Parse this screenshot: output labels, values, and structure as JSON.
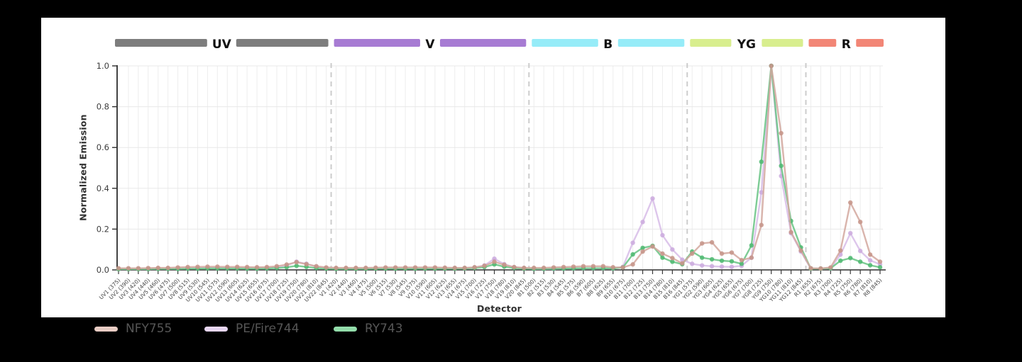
{
  "page": {
    "background": "#000000",
    "panel_background": "#ffffff"
  },
  "chart_data": {
    "type": "line",
    "title": "",
    "xlabel": "Detector",
    "ylabel": "Normalized Emission",
    "ylim": [
      0,
      1.0
    ],
    "ytick_labels": [
      "0.0",
      "0.2",
      "0.4",
      "0.6",
      "0.8",
      "1.0"
    ],
    "ytick_values": [
      0,
      0.2,
      0.4,
      0.6,
      0.8,
      1.0
    ],
    "grid": true,
    "legend_position": "bottom-left",
    "laser_bands": [
      {
        "label": "UV",
        "color": "#7d7d7d",
        "start_index": 0,
        "end_index": 21
      },
      {
        "label": "V",
        "color": "#a77bd3",
        "start_index": 22,
        "end_index": 41
      },
      {
        "label": "B",
        "color": "#96ecf8",
        "start_index": 42,
        "end_index": 57
      },
      {
        "label": "YG",
        "color": "#d8ee8e",
        "start_index": 58,
        "end_index": 69
      },
      {
        "label": "R",
        "color": "#f28676",
        "start_index": 70,
        "end_index": 77
      }
    ],
    "categories": [
      "UV1 (375)",
      "UV2 (390)",
      "UV3 (420)",
      "UV4 (440)",
      "UV5 (460)",
      "UV6 (475)",
      "UV7 (500)",
      "UV8 (515)",
      "UV9 (530)",
      "UV10 (545)",
      "UV11 (575)",
      "UV12 (590)",
      "UV13 (605)",
      "UV14 (625)",
      "UV15 (655)",
      "UV16 (675)",
      "UV17 (700)",
      "UV18 (725)",
      "UV19 (750)",
      "UV20 (780)",
      "UV21 (810)",
      "UV22 (845)",
      "V1 (420)",
      "V2 (440)",
      "V3 (460)",
      "V4 (475)",
      "V5 (500)",
      "V6 (515)",
      "V7 (530)",
      "V8 (545)",
      "V9 (575)",
      "V10 (590)",
      "V11 (605)",
      "V12 (625)",
      "V13 (655)",
      "V14 (675)",
      "V15 (700)",
      "V16 (725)",
      "V17 (750)",
      "V18 (780)",
      "V19 (810)",
      "V20 (845)",
      "B1 (500)",
      "B2 (515)",
      "B3 (530)",
      "B4 (545)",
      "B5 (575)",
      "B6 (590)",
      "B7 (605)",
      "B8 (625)",
      "B9 (655)",
      "B10 (675)",
      "B11 (700)",
      "B12 (725)",
      "B13 (750)",
      "B14 (780)",
      "B15 (810)",
      "B16 (845)",
      "YG1 (575)",
      "YG2 (590)",
      "YG3 (605)",
      "YG4 (625)",
      "YG5 (655)",
      "YG6 (675)",
      "YG7 (700)",
      "YG8 (725)",
      "YG9 (750)",
      "YG10 (780)",
      "YG11 (810)",
      "YG12 (845)",
      "R1 (655)",
      "R2 (675)",
      "R3 (700)",
      "R4 (725)",
      "R5 (750)",
      "R6 (780)",
      "R7 (810)",
      "R8 (845)"
    ],
    "series": [
      {
        "name": "NFY755",
        "line_color": "#d2a79d",
        "marker_color": "#c59488",
        "legend_color": "#e8ccc4",
        "values": [
          0.008,
          0.008,
          0.008,
          0.009,
          0.01,
          0.01,
          0.012,
          0.014,
          0.015,
          0.016,
          0.016,
          0.015,
          0.015,
          0.014,
          0.013,
          0.014,
          0.018,
          0.026,
          0.038,
          0.028,
          0.018,
          0.012,
          0.01,
          0.01,
          0.01,
          0.01,
          0.011,
          0.012,
          0.012,
          0.012,
          0.012,
          0.012,
          0.012,
          0.011,
          0.01,
          0.01,
          0.013,
          0.02,
          0.04,
          0.025,
          0.014,
          0.01,
          0.01,
          0.01,
          0.012,
          0.014,
          0.016,
          0.018,
          0.018,
          0.018,
          0.013,
          0.012,
          0.027,
          0.09,
          0.115,
          0.08,
          0.058,
          0.032,
          0.08,
          0.13,
          0.135,
          0.08,
          0.085,
          0.048,
          0.06,
          0.22,
          1.0,
          0.67,
          0.185,
          0.095,
          0.008,
          0.007,
          0.012,
          0.095,
          0.33,
          0.235,
          0.075,
          0.04
        ]
      },
      {
        "name": "PE/Fire744",
        "line_color": "#d7bce8",
        "marker_color": "#cbaade",
        "legend_color": "#e7d6f3",
        "values": [
          0.005,
          0.005,
          0.005,
          0.005,
          0.006,
          0.006,
          0.007,
          0.008,
          0.009,
          0.01,
          0.01,
          0.01,
          0.01,
          0.009,
          0.009,
          0.01,
          0.013,
          0.022,
          0.04,
          0.03,
          0.016,
          0.01,
          0.007,
          0.007,
          0.007,
          0.007,
          0.008,
          0.008,
          0.008,
          0.008,
          0.008,
          0.008,
          0.008,
          0.008,
          0.008,
          0.008,
          0.012,
          0.022,
          0.055,
          0.028,
          0.013,
          0.008,
          0.005,
          0.005,
          0.005,
          0.006,
          0.007,
          0.008,
          0.008,
          0.008,
          0.007,
          0.015,
          0.133,
          0.235,
          0.35,
          0.17,
          0.1,
          0.05,
          0.03,
          0.022,
          0.018,
          0.016,
          0.015,
          0.02,
          0.06,
          0.38,
          1.0,
          0.46,
          0.18,
          0.09,
          0.006,
          0.006,
          0.008,
          0.075,
          0.18,
          0.093,
          0.047,
          0.027
        ]
      },
      {
        "name": "RY743",
        "line_color": "#66c383",
        "marker_color": "#4eb971",
        "legend_color": "#92dcaa",
        "values": [
          0.004,
          0.004,
          0.004,
          0.004,
          0.005,
          0.005,
          0.005,
          0.006,
          0.006,
          0.007,
          0.007,
          0.007,
          0.007,
          0.006,
          0.006,
          0.007,
          0.009,
          0.013,
          0.02,
          0.015,
          0.009,
          0.006,
          0.005,
          0.005,
          0.005,
          0.005,
          0.006,
          0.006,
          0.006,
          0.006,
          0.006,
          0.006,
          0.006,
          0.006,
          0.006,
          0.007,
          0.009,
          0.014,
          0.027,
          0.016,
          0.009,
          0.006,
          0.005,
          0.005,
          0.006,
          0.006,
          0.007,
          0.008,
          0.008,
          0.008,
          0.007,
          0.012,
          0.076,
          0.108,
          0.118,
          0.06,
          0.04,
          0.028,
          0.09,
          0.06,
          0.052,
          0.045,
          0.042,
          0.03,
          0.12,
          0.53,
          1.0,
          0.51,
          0.24,
          0.11,
          0.006,
          0.006,
          0.008,
          0.045,
          0.058,
          0.04,
          0.023,
          0.013
        ]
      }
    ]
  },
  "legend_item_x": [
    133,
    288,
    470
  ],
  "style_colors": {
    "grid_line": "#ededed",
    "hgrid_line": "#e8e8e8",
    "band_separator": "#cccccc",
    "axis_spine": "#2e2e2e",
    "tick_label": "#3d3d3d",
    "x_tick_label": "#454545",
    "band_label": "#111111"
  }
}
